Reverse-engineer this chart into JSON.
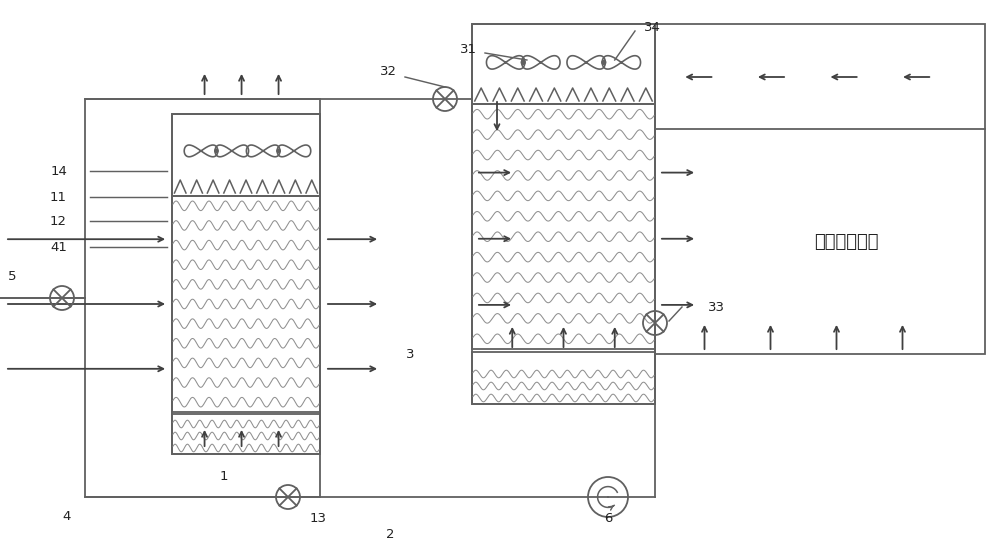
{
  "bg": "#ffffff",
  "lc": "#606060",
  "ac": "#404040",
  "wc": "#909090",
  "tc": "#222222",
  "lw": 1.3,
  "datacenter_text": "数据中心机房"
}
